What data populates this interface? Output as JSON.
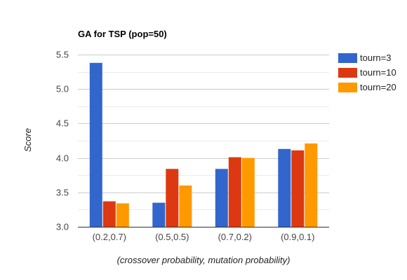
{
  "chart_data": {
    "type": "bar",
    "title": "GA for TSP (pop=50)",
    "xlabel": "(crossover probability, mutation probability)",
    "ylabel": "Score",
    "categories": [
      "(0.2,0.7)",
      "(0.5,0.5)",
      "(0.7,0.2)",
      "(0.9,0.1)"
    ],
    "series": [
      {
        "name": "tourn=3",
        "color": "#3366cc",
        "values": [
          5.38,
          3.35,
          3.84,
          4.13
        ]
      },
      {
        "name": "tourn=10",
        "color": "#dc3912",
        "values": [
          3.37,
          3.84,
          4.01,
          4.11
        ]
      },
      {
        "name": "tourn=20",
        "color": "#ff9900",
        "values": [
          3.34,
          3.6,
          4.0,
          4.21
        ]
      }
    ],
    "ylim": [
      3.0,
      5.5
    ],
    "yticks": [
      "3.0",
      "3.5",
      "4.0",
      "4.5",
      "5.0",
      "5.5"
    ],
    "grid": true,
    "legend_position": "right"
  }
}
